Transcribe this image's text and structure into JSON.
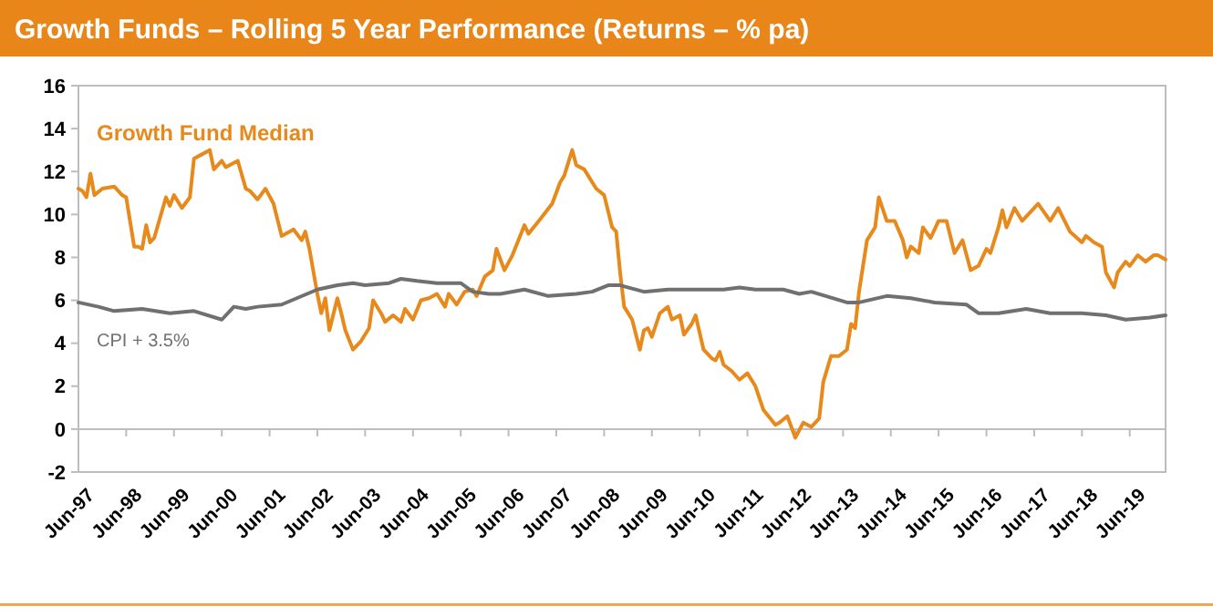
{
  "chart_data": {
    "type": "line",
    "title": "Growth Funds – Rolling 5 Year Performance (Returns – % pa)",
    "xlim": [
      "1997-06",
      "2020-03"
    ],
    "xticks": [
      {
        "value": "1997-06",
        "label": "Jun-97"
      },
      {
        "value": "1998-06",
        "label": "Jun-98"
      },
      {
        "value": "1999-06",
        "label": "Jun-99"
      },
      {
        "value": "2000-06",
        "label": "Jun-00"
      },
      {
        "value": "2001-06",
        "label": "Jun-01"
      },
      {
        "value": "2002-06",
        "label": "Jun-02"
      },
      {
        "value": "2003-06",
        "label": "Jun-03"
      },
      {
        "value": "2004-06",
        "label": "Jun-04"
      },
      {
        "value": "2005-06",
        "label": "Jun-05"
      },
      {
        "value": "2006-06",
        "label": "Jun-06"
      },
      {
        "value": "2007-06",
        "label": "Jun-07"
      },
      {
        "value": "2008-06",
        "label": "Jun-08"
      },
      {
        "value": "2009-06",
        "label": "Jun-09"
      },
      {
        "value": "2010-06",
        "label": "Jun-10"
      },
      {
        "value": "2011-06",
        "label": "Jun-11"
      },
      {
        "value": "2012-06",
        "label": "Jun-12"
      },
      {
        "value": "2013-06",
        "label": "Jun-13"
      },
      {
        "value": "2014-06",
        "label": "Jun-14"
      },
      {
        "value": "2015-06",
        "label": "Jun-15"
      },
      {
        "value": "2016-06",
        "label": "Jun-16"
      },
      {
        "value": "2017-06",
        "label": "Jun-17"
      },
      {
        "value": "2018-06",
        "label": "Jun-18"
      },
      {
        "value": "2019-06",
        "label": "Jun-19"
      }
    ],
    "ylim": [
      -2,
      16
    ],
    "yticks": [
      -2,
      0,
      2,
      4,
      6,
      8,
      10,
      12,
      14,
      16
    ],
    "marker": "none",
    "line_style": "solid",
    "series": [
      {
        "name": "Growth Fund Median",
        "color": "#e8891b",
        "x": [
          "1997-06",
          "1997-07",
          "1997-08",
          "1997-09",
          "1997-10",
          "1997-12",
          "1998-03",
          "1998-05",
          "1998-06",
          "1998-08",
          "1998-09",
          "1998-10",
          "1998-11",
          "1998-12",
          "1999-01",
          "1999-04",
          "1999-05",
          "1999-06",
          "1999-08",
          "1999-10",
          "1999-11",
          "2000-01",
          "2000-03",
          "2000-04",
          "2000-06",
          "2000-07",
          "2000-10",
          "2000-12",
          "2001-01",
          "2001-03",
          "2001-05",
          "2001-07",
          "2001-09",
          "2001-11",
          "2001-12",
          "2002-02",
          "2002-03",
          "2002-04",
          "2002-06",
          "2002-07",
          "2002-08",
          "2002-09",
          "2002-11",
          "2002-12",
          "2003-01",
          "2003-03",
          "2003-05",
          "2003-07",
          "2003-08",
          "2003-10",
          "2003-11",
          "2004-01",
          "2004-03",
          "2004-04",
          "2004-06",
          "2004-08",
          "2004-10",
          "2004-12",
          "2005-02",
          "2005-03",
          "2005-05",
          "2005-07",
          "2005-09",
          "2005-10",
          "2005-12",
          "2006-02",
          "2006-03",
          "2006-05",
          "2006-07",
          "2006-10",
          "2006-11",
          "2007-02",
          "2007-05",
          "2007-07",
          "2007-08",
          "2007-10",
          "2007-11",
          "2008-01",
          "2008-04",
          "2008-06",
          "2008-08",
          "2008-09",
          "2008-10",
          "2008-11",
          "2009-01",
          "2009-03",
          "2009-04",
          "2009-05",
          "2009-06",
          "2009-08",
          "2009-10",
          "2009-11",
          "2010-01",
          "2010-02",
          "2010-04",
          "2010-05",
          "2010-07",
          "2010-09",
          "2010-10",
          "2010-11",
          "2010-12",
          "2011-02",
          "2011-04",
          "2011-06",
          "2011-08",
          "2011-10",
          "2012-01",
          "2012-02",
          "2012-04",
          "2012-06",
          "2012-08",
          "2012-10",
          "2012-12",
          "2013-01",
          "2013-03",
          "2013-05",
          "2013-07",
          "2013-08",
          "2013-09",
          "2013-10",
          "2013-12",
          "2014-02",
          "2014-03",
          "2014-05",
          "2014-07",
          "2014-09",
          "2014-10",
          "2014-11",
          "2015-01",
          "2015-02",
          "2015-04",
          "2015-06",
          "2015-08",
          "2015-10",
          "2015-12",
          "2016-02",
          "2016-04",
          "2016-06",
          "2016-07",
          "2016-09",
          "2016-10",
          "2016-11",
          "2017-01",
          "2017-03",
          "2017-07",
          "2017-10",
          "2017-12",
          "2018-03",
          "2018-06",
          "2018-07",
          "2018-09",
          "2018-11",
          "2018-12",
          "2019-02",
          "2019-03",
          "2019-05",
          "2019-06",
          "2019-08",
          "2019-10",
          "2019-12",
          "2020-01",
          "2020-03"
        ],
        "values": [
          11.2,
          11.1,
          10.8,
          11.9,
          10.9,
          11.2,
          11.3,
          10.9,
          10.8,
          8.5,
          8.5,
          8.4,
          9.5,
          8.7,
          8.9,
          10.8,
          10.4,
          10.9,
          10.3,
          10.8,
          12.6,
          12.8,
          13.0,
          12.1,
          12.5,
          12.2,
          12.5,
          11.2,
          11.1,
          10.7,
          11.2,
          10.5,
          9.0,
          9.2,
          9.3,
          8.8,
          9.2,
          8.4,
          6.3,
          5.4,
          6.1,
          4.6,
          6.1,
          5.4,
          4.6,
          3.7,
          4.1,
          4.7,
          6.0,
          5.4,
          5.0,
          5.3,
          5.0,
          5.6,
          5.1,
          6.0,
          6.1,
          6.3,
          5.7,
          6.3,
          5.8,
          6.4,
          6.5,
          6.2,
          7.1,
          7.4,
          8.4,
          7.4,
          8.1,
          9.5,
          9.1,
          9.8,
          10.5,
          11.5,
          11.8,
          13.0,
          12.3,
          12.1,
          11.2,
          10.9,
          9.4,
          9.2,
          7.3,
          5.7,
          5.1,
          3.7,
          4.6,
          4.7,
          4.3,
          5.4,
          5.7,
          5.1,
          5.3,
          4.4,
          4.9,
          5.3,
          3.7,
          3.3,
          3.2,
          3.6,
          3.0,
          2.7,
          2.3,
          2.6,
          2.0,
          0.9,
          0.2,
          0.3,
          0.6,
          -0.4,
          0.3,
          0.1,
          0.5,
          2.2,
          3.4,
          3.4,
          3.7,
          4.9,
          4.7,
          6.4,
          8.8,
          9.4,
          10.8,
          9.7,
          9.7,
          8.8,
          8.0,
          8.5,
          8.2,
          9.4,
          8.9,
          9.7,
          9.7,
          8.2,
          8.8,
          7.4,
          7.6,
          8.4,
          8.2,
          9.4,
          10.2,
          9.4,
          10.3,
          9.7,
          10.5,
          9.7,
          10.3,
          9.2,
          8.7,
          9.0,
          8.7,
          8.5,
          7.3,
          6.6,
          7.3,
          7.8,
          7.6,
          8.1,
          7.8,
          8.1,
          8.1,
          7.9
        ]
      },
      {
        "name": "CPI + 3.5%",
        "color": "#707070",
        "x": [
          "1997-06",
          "1997-11",
          "1998-03",
          "1998-10",
          "1999-05",
          "1999-11",
          "2000-06",
          "2000-09",
          "2000-12",
          "2001-03",
          "2001-09",
          "2002-06",
          "2002-11",
          "2003-03",
          "2003-06",
          "2003-12",
          "2004-03",
          "2004-07",
          "2004-12",
          "2005-06",
          "2005-09",
          "2006-01",
          "2006-04",
          "2006-10",
          "2007-04",
          "2007-11",
          "2008-03",
          "2008-07",
          "2008-10",
          "2009-04",
          "2009-10",
          "2010-12",
          "2011-04",
          "2011-08",
          "2012-03",
          "2012-07",
          "2012-10",
          "2013-07",
          "2013-10",
          "2014-05",
          "2014-11",
          "2015-05",
          "2016-01",
          "2016-04",
          "2016-09",
          "2017-04",
          "2017-10",
          "2018-06",
          "2018-12",
          "2019-05",
          "2019-11",
          "2020-03"
        ],
        "values": [
          5.9,
          5.7,
          5.5,
          5.6,
          5.4,
          5.5,
          5.1,
          5.7,
          5.6,
          5.7,
          5.8,
          6.5,
          6.7,
          6.8,
          6.7,
          6.8,
          7.0,
          6.9,
          6.8,
          6.8,
          6.4,
          6.3,
          6.3,
          6.5,
          6.2,
          6.3,
          6.4,
          6.7,
          6.7,
          6.4,
          6.5,
          6.5,
          6.6,
          6.5,
          6.5,
          6.3,
          6.4,
          5.9,
          5.9,
          6.2,
          6.1,
          5.9,
          5.8,
          5.4,
          5.4,
          5.6,
          5.4,
          5.4,
          5.3,
          5.1,
          5.2,
          5.3
        ]
      }
    ]
  }
}
